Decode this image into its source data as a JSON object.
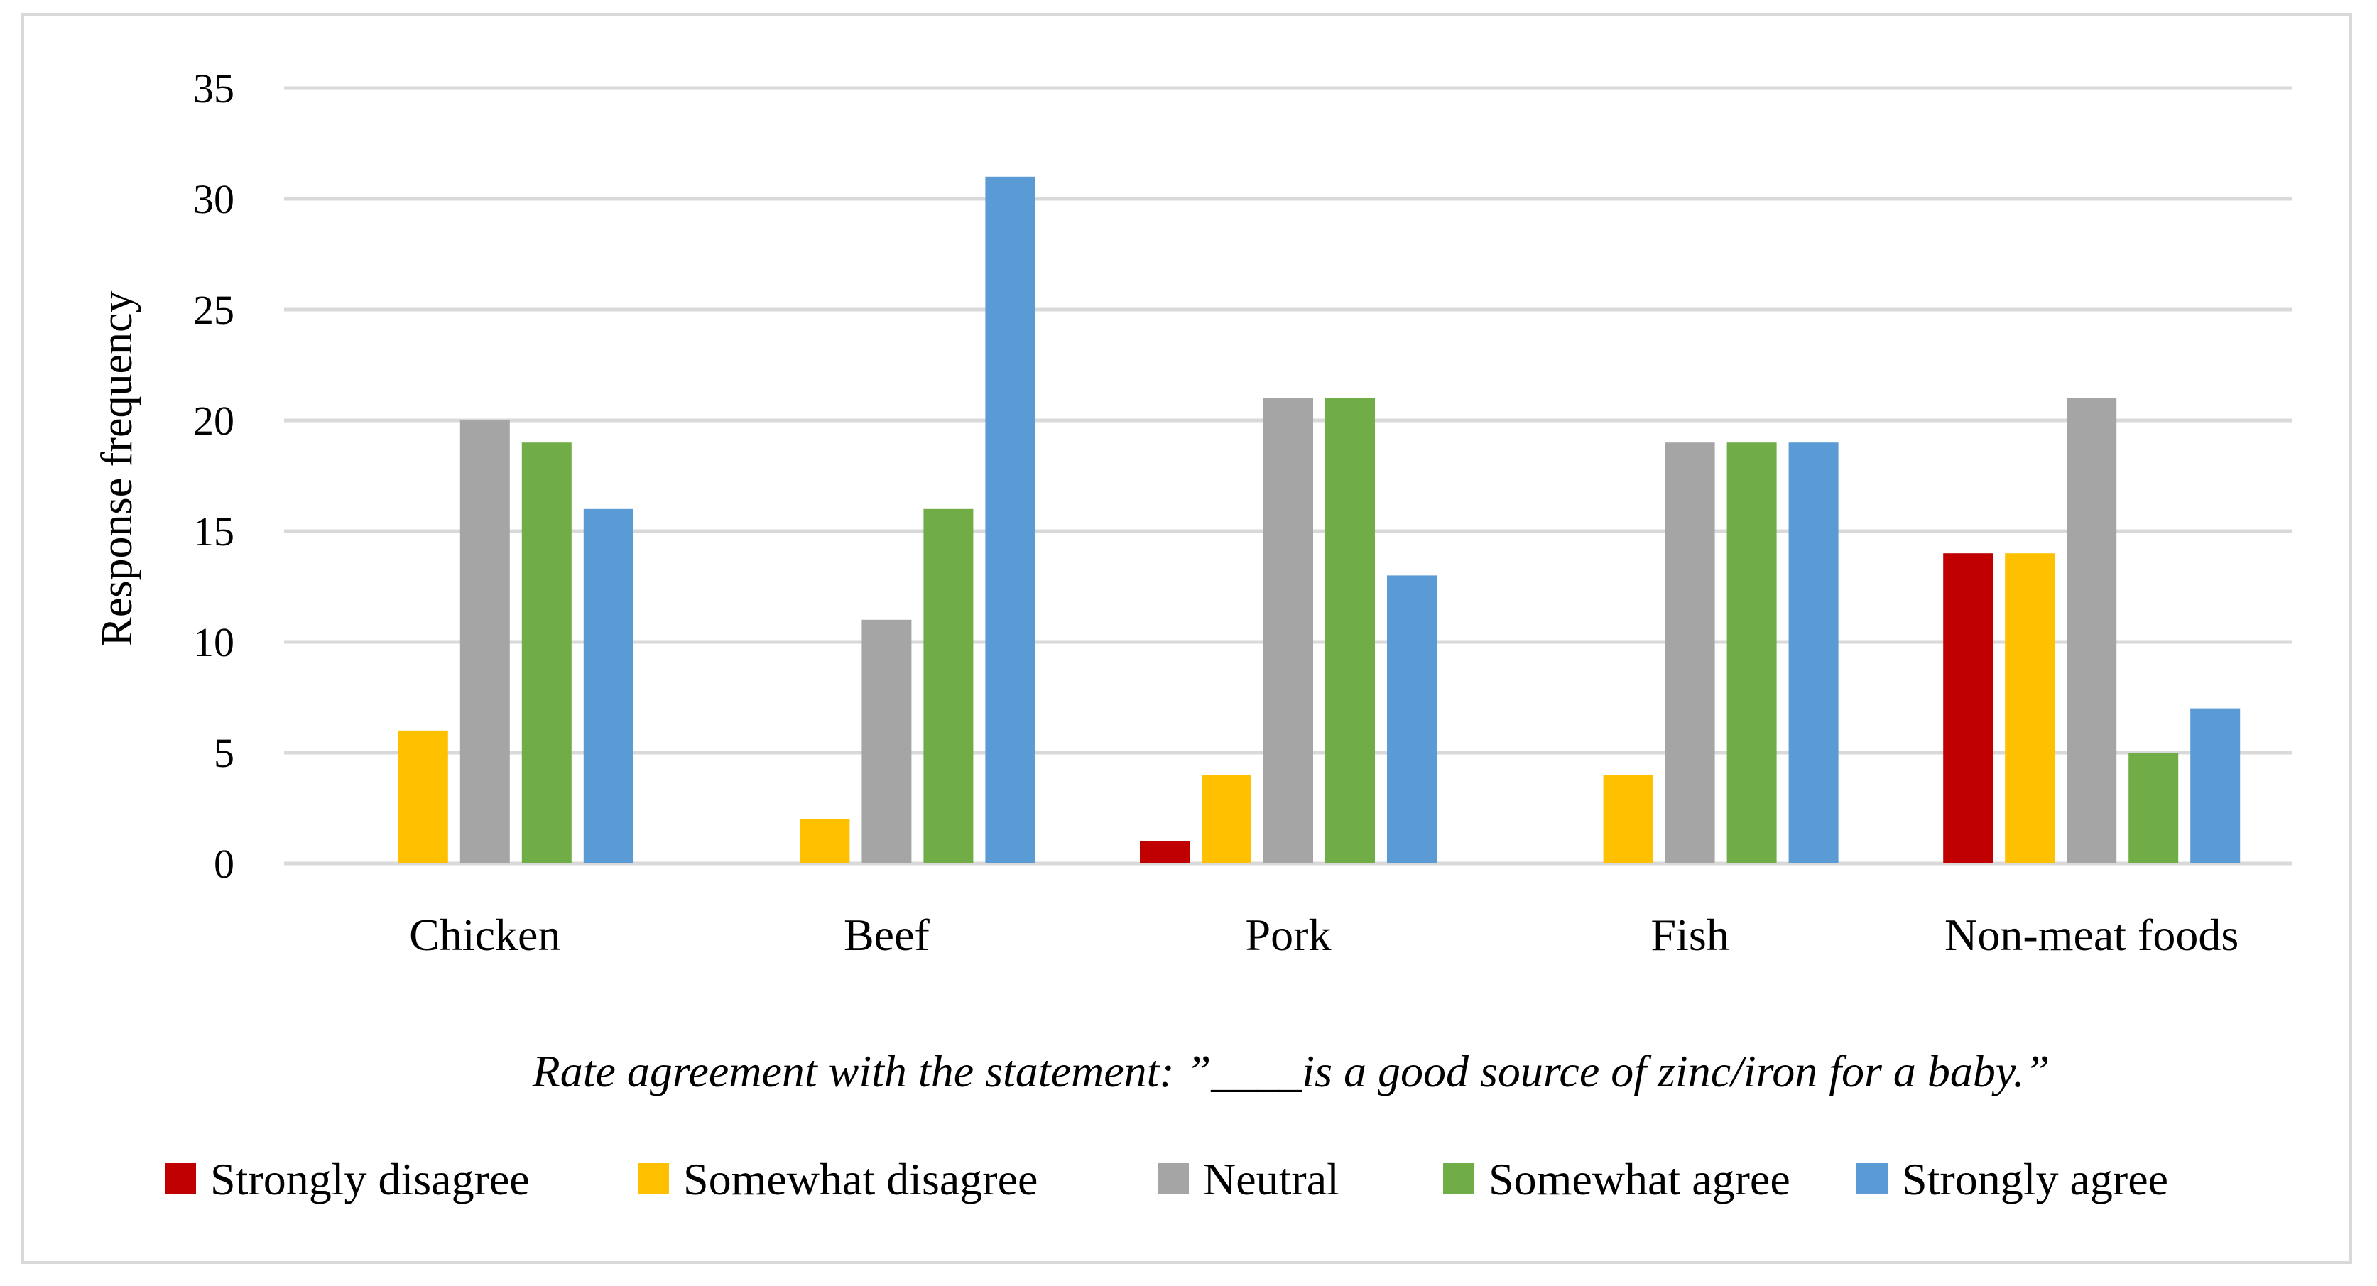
{
  "chart_data": {
    "type": "bar",
    "title": "",
    "categories": [
      "Chicken",
      "Beef",
      "Pork",
      "Fish",
      "Non-meat foods"
    ],
    "series": [
      {
        "name": "Strongly disagree",
        "color": "#c00000",
        "values": [
          0,
          0,
          1,
          0,
          14
        ]
      },
      {
        "name": "Somewhat disagree",
        "color": "#ffc000",
        "values": [
          6,
          2,
          4,
          4,
          14
        ]
      },
      {
        "name": "Neutral",
        "color": "#a5a5a5",
        "values": [
          20,
          11,
          21,
          19,
          21
        ]
      },
      {
        "name": "Somewhat agree",
        "color": "#70ad47",
        "values": [
          19,
          16,
          21,
          19,
          5
        ]
      },
      {
        "name": "Strongly agree",
        "color": "#5b9bd5",
        "values": [
          16,
          31,
          13,
          19,
          7
        ]
      }
    ],
    "ylabel": "Response frequency",
    "xlabel": "Rate agreement with the statement: ”____is a good source of zinc/iron for a baby.”",
    "ylim": [
      0,
      35
    ],
    "yticks": [
      "0",
      "5",
      "10",
      "15",
      "20",
      "25",
      "30",
      "35"
    ],
    "grid": true,
    "legend_position": "bottom"
  }
}
